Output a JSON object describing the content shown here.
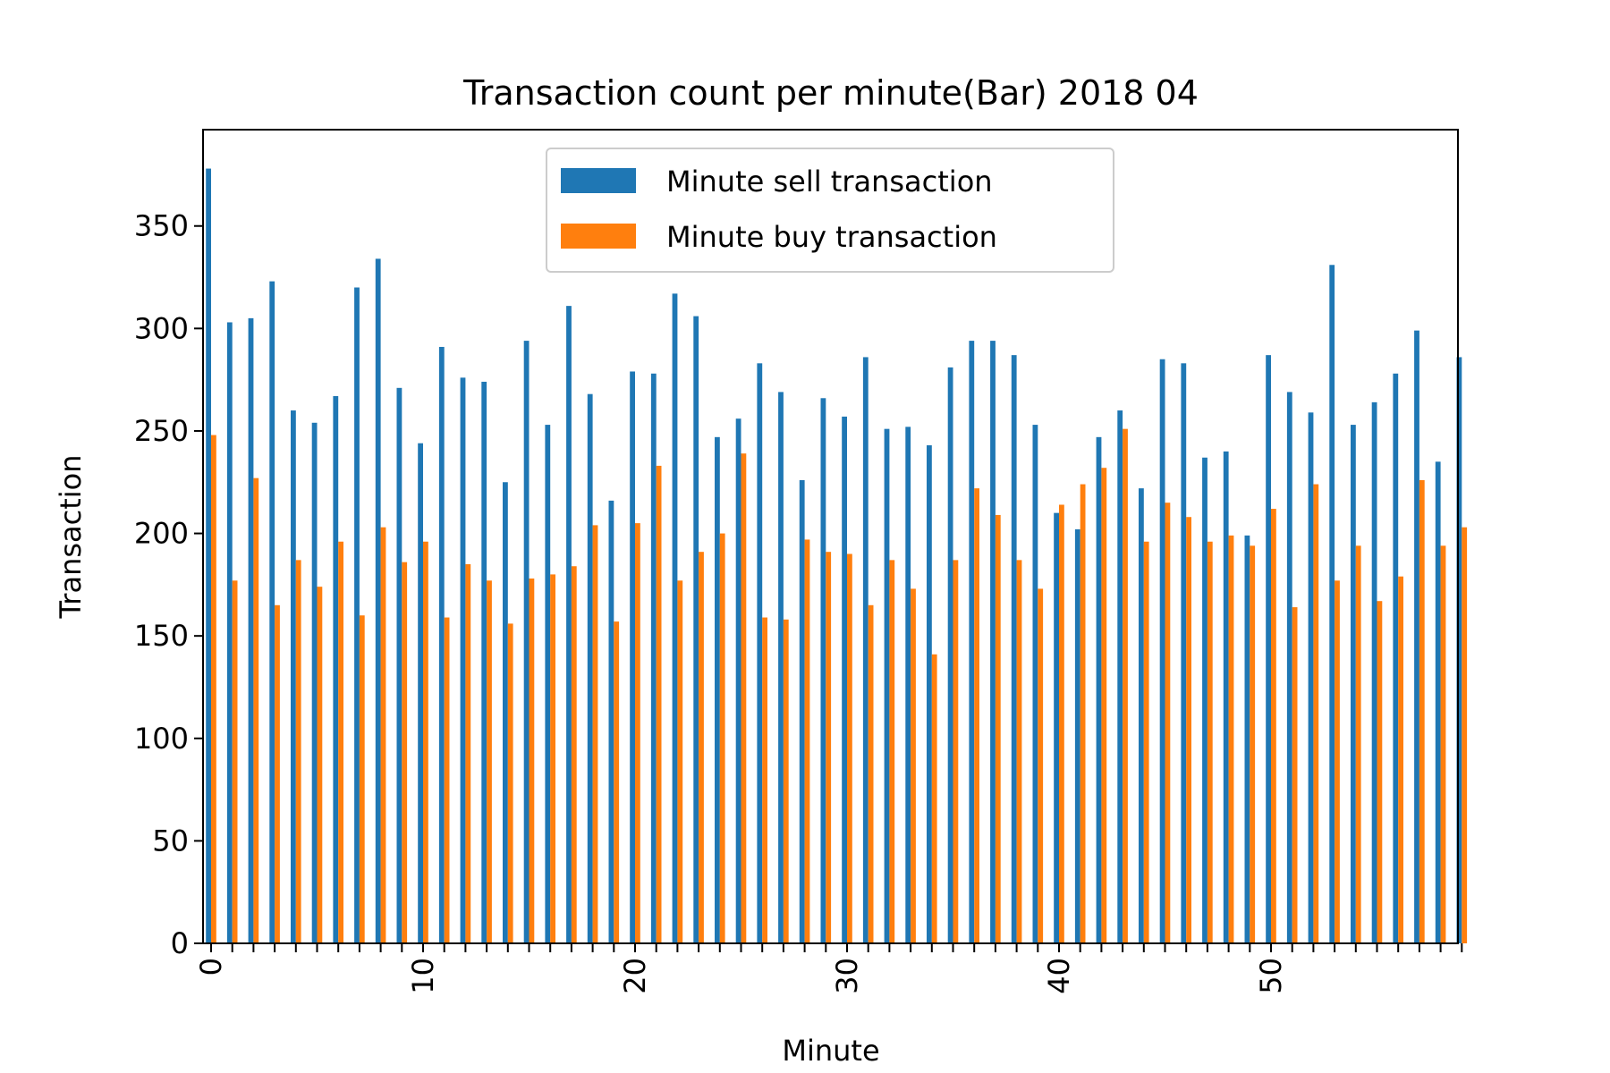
{
  "chart_data": {
    "type": "bar",
    "title": "Transaction count per minute(Bar) 2018 04",
    "xlabel": "Minute",
    "ylabel": "Transaction",
    "ylim": [
      0,
      397
    ],
    "y_ticks": [
      0,
      50,
      100,
      150,
      200,
      250,
      300,
      350
    ],
    "x_ticks": [
      0,
      10,
      20,
      30,
      40,
      50
    ],
    "categories": [
      0,
      1,
      2,
      3,
      4,
      5,
      6,
      7,
      8,
      9,
      10,
      11,
      12,
      13,
      14,
      15,
      16,
      17,
      18,
      19,
      20,
      21,
      22,
      23,
      24,
      25,
      26,
      27,
      28,
      29,
      30,
      31,
      32,
      33,
      34,
      35,
      36,
      37,
      38,
      39,
      40,
      41,
      42,
      43,
      44,
      45,
      46,
      47,
      48,
      49,
      50,
      51,
      52,
      53,
      54,
      55,
      56,
      57,
      58,
      59
    ],
    "grid": false,
    "legend_position": "upper center",
    "series": [
      {
        "name": "Minute sell transaction",
        "color": "#1f77b4",
        "values": [
          378,
          303,
          305,
          323,
          260,
          254,
          267,
          320,
          334,
          271,
          244,
          291,
          276,
          274,
          225,
          294,
          253,
          311,
          268,
          216,
          279,
          278,
          317,
          306,
          247,
          256,
          283,
          269,
          226,
          266,
          257,
          286,
          251,
          252,
          243,
          281,
          294,
          294,
          287,
          253,
          210,
          202,
          247,
          260,
          222,
          285,
          283,
          237,
          240,
          199,
          287,
          269,
          259,
          331,
          253,
          264,
          278,
          299,
          235,
          286
        ]
      },
      {
        "name": "Minute buy transaction",
        "color": "#ff7f0e",
        "values": [
          248,
          177,
          227,
          165,
          187,
          174,
          196,
          160,
          203,
          186,
          196,
          159,
          185,
          177,
          156,
          178,
          180,
          184,
          204,
          157,
          205,
          233,
          177,
          191,
          200,
          239,
          159,
          158,
          197,
          191,
          190,
          165,
          187,
          173,
          141,
          187,
          222,
          209,
          187,
          173,
          214,
          224,
          232,
          251,
          196,
          215,
          208,
          196,
          199,
          194,
          212,
          164,
          224,
          177,
          194,
          167,
          179,
          226,
          194,
          203
        ]
      }
    ]
  }
}
